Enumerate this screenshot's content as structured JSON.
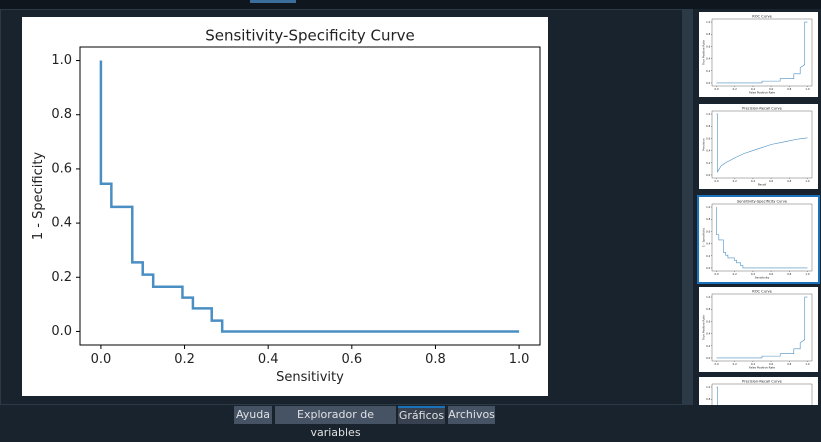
{
  "chart_data": [
    {
      "type": "line",
      "title": "Sensitivity-Specificity Curve",
      "xlabel": "Sensitivity",
      "ylabel": "1 - Specificity",
      "x": [
        0,
        0,
        0.025,
        0.025,
        0.075,
        0.075,
        0.1,
        0.1,
        0.125,
        0.125,
        0.195,
        0.195,
        0.22,
        0.22,
        0.265,
        0.265,
        0.29,
        0.29,
        1.0
      ],
      "series": [
        {
          "color": "#4a8fc4",
          "values": [
            1.0,
            0.545,
            0.545,
            0.46,
            0.46,
            0.255,
            0.255,
            0.21,
            0.21,
            0.165,
            0.165,
            0.125,
            0.125,
            0.085,
            0.085,
            0.04,
            0.04,
            0,
            0
          ]
        }
      ],
      "xlim": [
        -0.05,
        1.05
      ],
      "ylim": [
        -0.05,
        1.05
      ],
      "xticks": [
        {
          "value": 0,
          "label": "0.0"
        },
        {
          "value": 0.2,
          "label": "0.2"
        },
        {
          "value": 0.4,
          "label": "0.4"
        },
        {
          "value": 0.6,
          "label": "0.6"
        },
        {
          "value": 0.8,
          "label": "0.8"
        },
        {
          "value": 1,
          "label": "1.0"
        }
      ],
      "yticks": [
        {
          "value": 0,
          "label": "0.0"
        },
        {
          "value": 0.2,
          "label": "0.2"
        },
        {
          "value": 0.4,
          "label": "0.4"
        },
        {
          "value": 0.6,
          "label": "0.6"
        },
        {
          "value": 0.8,
          "label": "0.8"
        },
        {
          "value": 1,
          "label": "1.0"
        }
      ]
    },
    {
      "type": "line",
      "title": "ROC Curve",
      "xlabel": "False Positive Rate",
      "ylabel": "True Positive Rate",
      "x": [
        0,
        0.5,
        0.5,
        0.7,
        0.7,
        0.85,
        0.85,
        0.92,
        0.92,
        0.97,
        0.97,
        1.0
      ],
      "series": [
        {
          "color": "#4a8fc4",
          "values": [
            0,
            0,
            0.03,
            0.03,
            0.07,
            0.07,
            0.15,
            0.15,
            0.25,
            0.3,
            1.0,
            1.0
          ]
        }
      ],
      "xlim": [
        -0.05,
        1.05
      ],
      "ylim": [
        -0.05,
        1.05
      ],
      "xticks": [
        {
          "value": 0,
          "label": "0.0"
        },
        {
          "value": 0.2,
          "label": "0.2"
        },
        {
          "value": 0.4,
          "label": "0.4"
        },
        {
          "value": 0.6,
          "label": "0.6"
        },
        {
          "value": 0.8,
          "label": "0.8"
        },
        {
          "value": 1,
          "label": "1.0"
        }
      ],
      "yticks": [
        {
          "value": 0,
          "label": "0.0"
        },
        {
          "value": 0.2,
          "label": "0.2"
        },
        {
          "value": 0.4,
          "label": "0.4"
        },
        {
          "value": 0.6,
          "label": "0.6"
        },
        {
          "value": 0.8,
          "label": "0.8"
        },
        {
          "value": 1,
          "label": "1.0"
        }
      ]
    },
    {
      "type": "line",
      "title": "Precision-Recall Curve",
      "xlabel": "Recall",
      "ylabel": "Precision",
      "x": [
        0,
        0.01,
        0.01,
        0.05,
        0.1,
        0.2,
        0.3,
        0.4,
        0.5,
        0.6,
        0.7,
        0.8,
        0.9,
        1.0
      ],
      "series": [
        {
          "color": "#4a8fc4",
          "values": [
            1.0,
            1.0,
            0.05,
            0.15,
            0.2,
            0.28,
            0.35,
            0.4,
            0.45,
            0.5,
            0.53,
            0.56,
            0.59,
            0.61
          ]
        }
      ],
      "xlim": [
        -0.05,
        1.05
      ],
      "ylim": [
        -0.05,
        1.05
      ],
      "xticks": [
        {
          "value": 0,
          "label": "0.0"
        },
        {
          "value": 0.2,
          "label": "0.2"
        },
        {
          "value": 0.4,
          "label": "0.4"
        },
        {
          "value": 0.6,
          "label": "0.6"
        },
        {
          "value": 0.8,
          "label": "0.8"
        },
        {
          "value": 1,
          "label": "1.0"
        }
      ],
      "yticks": [
        {
          "value": 0,
          "label": "0.0"
        },
        {
          "value": 0.2,
          "label": "0.2"
        },
        {
          "value": 0.4,
          "label": "0.4"
        },
        {
          "value": 0.6,
          "label": "0.6"
        },
        {
          "value": 0.8,
          "label": "0.8"
        },
        {
          "value": 1,
          "label": "1.0"
        }
      ]
    },
    {
      "type": "line",
      "title": "Sensitivity-Specificity Curve",
      "xlabel": "Sensitivity",
      "ylabel": "1 - Specificity",
      "x": [
        0,
        0,
        0.025,
        0.025,
        0.075,
        0.075,
        0.1,
        0.1,
        0.125,
        0.125,
        0.195,
        0.195,
        0.22,
        0.22,
        0.265,
        0.265,
        0.29,
        0.29,
        1.0
      ],
      "series": [
        {
          "color": "#4a8fc4",
          "values": [
            1.0,
            0.545,
            0.545,
            0.46,
            0.46,
            0.255,
            0.255,
            0.21,
            0.21,
            0.165,
            0.165,
            0.125,
            0.125,
            0.085,
            0.085,
            0.04,
            0.04,
            0,
            0
          ]
        }
      ],
      "xlim": [
        -0.05,
        1.05
      ],
      "ylim": [
        -0.05,
        1.05
      ],
      "xticks": [
        {
          "value": 0,
          "label": "0.0"
        },
        {
          "value": 0.2,
          "label": "0.2"
        },
        {
          "value": 0.4,
          "label": "0.4"
        },
        {
          "value": 0.6,
          "label": "0.6"
        },
        {
          "value": 0.8,
          "label": "0.8"
        },
        {
          "value": 1,
          "label": "1.0"
        }
      ],
      "yticks": [
        {
          "value": 0,
          "label": "0.0"
        },
        {
          "value": 0.2,
          "label": "0.2"
        },
        {
          "value": 0.4,
          "label": "0.4"
        },
        {
          "value": 0.6,
          "label": "0.6"
        },
        {
          "value": 0.8,
          "label": "0.8"
        },
        {
          "value": 1,
          "label": "1.0"
        }
      ]
    },
    {
      "type": "line",
      "title": "ROC Curve",
      "xlabel": "False Positive Rate",
      "ylabel": "True Positive Rate",
      "x": [
        0,
        0.5,
        0.5,
        0.7,
        0.7,
        0.85,
        0.85,
        0.92,
        0.92,
        0.97,
        0.97,
        1.0
      ],
      "series": [
        {
          "color": "#4a8fc4",
          "values": [
            0,
            0,
            0.03,
            0.03,
            0.07,
            0.07,
            0.15,
            0.15,
            0.25,
            0.3,
            1.0,
            1.0
          ]
        }
      ],
      "xlim": [
        -0.05,
        1.05
      ],
      "ylim": [
        -0.05,
        1.05
      ],
      "xticks": [
        {
          "value": 0,
          "label": "0.0"
        },
        {
          "value": 0.2,
          "label": "0.2"
        },
        {
          "value": 0.4,
          "label": "0.4"
        },
        {
          "value": 0.6,
          "label": "0.6"
        },
        {
          "value": 0.8,
          "label": "0.8"
        },
        {
          "value": 1,
          "label": "1.0"
        }
      ],
      "yticks": [
        {
          "value": 0,
          "label": "0.0"
        },
        {
          "value": 0.2,
          "label": "0.2"
        },
        {
          "value": 0.4,
          "label": "0.4"
        },
        {
          "value": 0.6,
          "label": "0.6"
        },
        {
          "value": 0.8,
          "label": "0.8"
        },
        {
          "value": 1,
          "label": "1.0"
        }
      ]
    },
    {
      "type": "line",
      "title": "Precision-Recall Curve",
      "xlabel": "Recall",
      "ylabel": "Precision",
      "x": [
        0,
        0.01,
        0.01,
        0.05,
        0.1,
        0.2,
        0.3,
        0.4,
        0.5,
        0.6,
        0.7,
        0.8,
        0.9,
        1.0
      ],
      "series": [
        {
          "color": "#4a8fc4",
          "values": [
            1.0,
            1.0,
            0.05,
            0.15,
            0.2,
            0.28,
            0.35,
            0.4,
            0.45,
            0.5,
            0.53,
            0.56,
            0.59,
            0.61
          ]
        }
      ],
      "xlim": [
        -0.05,
        1.05
      ],
      "ylim": [
        -0.05,
        1.05
      ],
      "xticks": [
        {
          "value": 0,
          "label": "0.0"
        },
        {
          "value": 0.2,
          "label": "0.2"
        },
        {
          "value": 0.4,
          "label": "0.4"
        },
        {
          "value": 0.6,
          "label": "0.6"
        },
        {
          "value": 0.8,
          "label": "0.8"
        },
        {
          "value": 1,
          "label": "1.0"
        }
      ],
      "yticks": [
        {
          "value": 0,
          "label": "0.0"
        },
        {
          "value": 0.2,
          "label": "0.2"
        },
        {
          "value": 0.4,
          "label": "0.4"
        },
        {
          "value": 0.6,
          "label": "0.6"
        },
        {
          "value": 0.8,
          "label": "0.8"
        },
        {
          "value": 1,
          "label": "1.0"
        }
      ]
    }
  ],
  "tabs": [
    "Ayuda",
    "Explorador de variables",
    "Gráficos",
    "Archivos"
  ]
}
